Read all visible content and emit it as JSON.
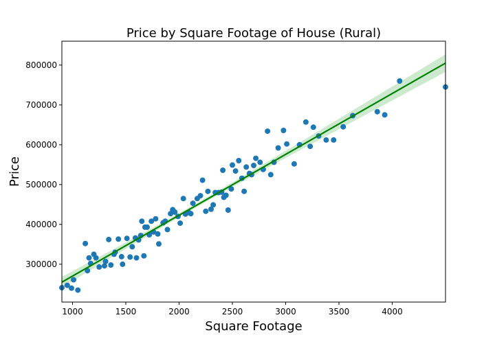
{
  "chart_data": {
    "type": "scatter",
    "title": "Price by Square Footage of House (Rural)",
    "xlabel": "Square Footage",
    "ylabel": "Price",
    "xlim": [
      900,
      4500
    ],
    "ylim": [
      205000,
      860000
    ],
    "xticks": [
      1000,
      1500,
      2000,
      2500,
      3000,
      3500,
      4000
    ],
    "yticks": [
      300000,
      400000,
      500000,
      600000,
      700000,
      800000
    ],
    "xtick_labels": [
      "1000",
      "1500",
      "2000",
      "2500",
      "3000",
      "3500",
      "4000"
    ],
    "ytick_labels": [
      "300000",
      "400000",
      "500000",
      "600000",
      "700000",
      "800000"
    ],
    "grid": false,
    "colors": {
      "points": "#1f77b4",
      "regression_line": "#008000",
      "confidence_band": "#a6d8a6"
    },
    "regression": {
      "x": [
        900,
        4500
      ],
      "y": [
        255000,
        805000
      ],
      "ci_halfwidth_at_mean": 5000,
      "ci_halfwidth_at_ends": 22000,
      "x_mean": 2200
    },
    "points": [
      [
        900,
        241000
      ],
      [
        950,
        247000
      ],
      [
        990,
        240000
      ],
      [
        1010,
        261000
      ],
      [
        1050,
        235000
      ],
      [
        1120,
        352000
      ],
      [
        1140,
        284000
      ],
      [
        1155,
        316000
      ],
      [
        1170,
        302000
      ],
      [
        1200,
        325000
      ],
      [
        1220,
        316000
      ],
      [
        1250,
        293000
      ],
      [
        1300,
        296000
      ],
      [
        1310,
        307000
      ],
      [
        1340,
        362000
      ],
      [
        1360,
        298000
      ],
      [
        1390,
        325000
      ],
      [
        1400,
        330000
      ],
      [
        1430,
        363000
      ],
      [
        1460,
        319000
      ],
      [
        1470,
        300000
      ],
      [
        1510,
        365000
      ],
      [
        1540,
        318000
      ],
      [
        1560,
        344000
      ],
      [
        1590,
        366000
      ],
      [
        1600,
        316000
      ],
      [
        1620,
        361000
      ],
      [
        1640,
        372000
      ],
      [
        1650,
        408000
      ],
      [
        1670,
        321000
      ],
      [
        1680,
        393000
      ],
      [
        1700,
        393000
      ],
      [
        1720,
        374000
      ],
      [
        1740,
        408000
      ],
      [
        1760,
        381000
      ],
      [
        1780,
        414000
      ],
      [
        1800,
        376000
      ],
      [
        1810,
        351000
      ],
      [
        1850,
        404000
      ],
      [
        1870,
        408000
      ],
      [
        1890,
        387000
      ],
      [
        1920,
        427000
      ],
      [
        1940,
        437000
      ],
      [
        1960,
        431000
      ],
      [
        1990,
        420000
      ],
      [
        2010,
        403000
      ],
      [
        2040,
        465000
      ],
      [
        2060,
        426000
      ],
      [
        2090,
        430000
      ],
      [
        2110,
        427000
      ],
      [
        2130,
        453000
      ],
      [
        2170,
        465000
      ],
      [
        2200,
        472000
      ],
      [
        2220,
        511000
      ],
      [
        2250,
        433000
      ],
      [
        2270,
        483000
      ],
      [
        2300,
        438000
      ],
      [
        2320,
        449000
      ],
      [
        2340,
        480000
      ],
      [
        2370,
        480000
      ],
      [
        2400,
        481000
      ],
      [
        2410,
        536000
      ],
      [
        2420,
        468000
      ],
      [
        2440,
        473000
      ],
      [
        2460,
        436000
      ],
      [
        2490,
        489000
      ],
      [
        2500,
        549000
      ],
      [
        2530,
        534000
      ],
      [
        2560,
        560000
      ],
      [
        2590,
        516000
      ],
      [
        2610,
        483000
      ],
      [
        2630,
        544000
      ],
      [
        2660,
        528000
      ],
      [
        2680,
        525000
      ],
      [
        2700,
        548000
      ],
      [
        2720,
        566000
      ],
      [
        2760,
        556000
      ],
      [
        2790,
        538000
      ],
      [
        2830,
        634000
      ],
      [
        2860,
        525000
      ],
      [
        2890,
        556000
      ],
      [
        2930,
        592000
      ],
      [
        2980,
        636000
      ],
      [
        3010,
        602000
      ],
      [
        3080,
        552000
      ],
      [
        3130,
        600000
      ],
      [
        3190,
        657000
      ],
      [
        3230,
        596000
      ],
      [
        3260,
        644000
      ],
      [
        3310,
        622000
      ],
      [
        3380,
        612000
      ],
      [
        3450,
        612000
      ],
      [
        3540,
        645000
      ],
      [
        3630,
        673000
      ],
      [
        3860,
        683000
      ],
      [
        3930,
        675000
      ],
      [
        4070,
        760000
      ],
      [
        4500,
        745000
      ]
    ]
  }
}
